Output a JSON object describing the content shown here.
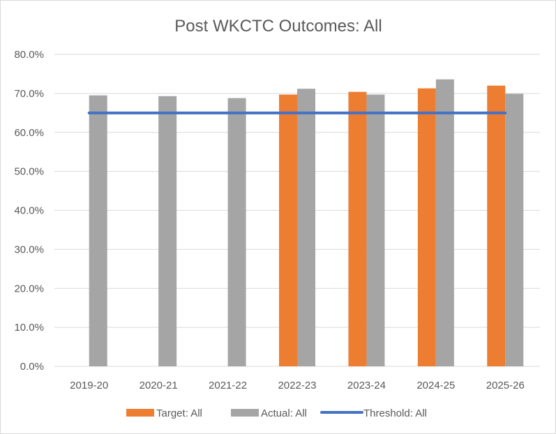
{
  "chart_data": {
    "type": "bar",
    "title": "Post WKCTC Outcomes: All",
    "categories": [
      "2019-20",
      "2020-21",
      "2021-22",
      "2022-23",
      "2023-24",
      "2024-25",
      "2025-26"
    ],
    "series": [
      {
        "name": "Target: All",
        "kind": "bar",
        "color": "#ED7D31",
        "values": [
          null,
          null,
          null,
          69.7,
          70.4,
          71.3,
          72.0
        ]
      },
      {
        "name": "Actual: All",
        "kind": "bar",
        "color": "#A5A5A5",
        "values": [
          69.5,
          69.3,
          68.8,
          71.2,
          69.7,
          73.6,
          69.9
        ]
      },
      {
        "name": "Threshold: All",
        "kind": "line",
        "color": "#4472C4",
        "values": [
          65.0,
          65.0,
          65.0,
          65.0,
          65.0,
          65.0,
          65.0
        ]
      }
    ],
    "ylim": [
      0,
      80
    ],
    "yticks": [
      "0.0%",
      "10.0%",
      "20.0%",
      "30.0%",
      "40.0%",
      "50.0%",
      "60.0%",
      "70.0%",
      "80.0%"
    ],
    "ytick_values": [
      0,
      10,
      20,
      30,
      40,
      50,
      60,
      70,
      80
    ],
    "grid": true,
    "legend": "bottom"
  }
}
